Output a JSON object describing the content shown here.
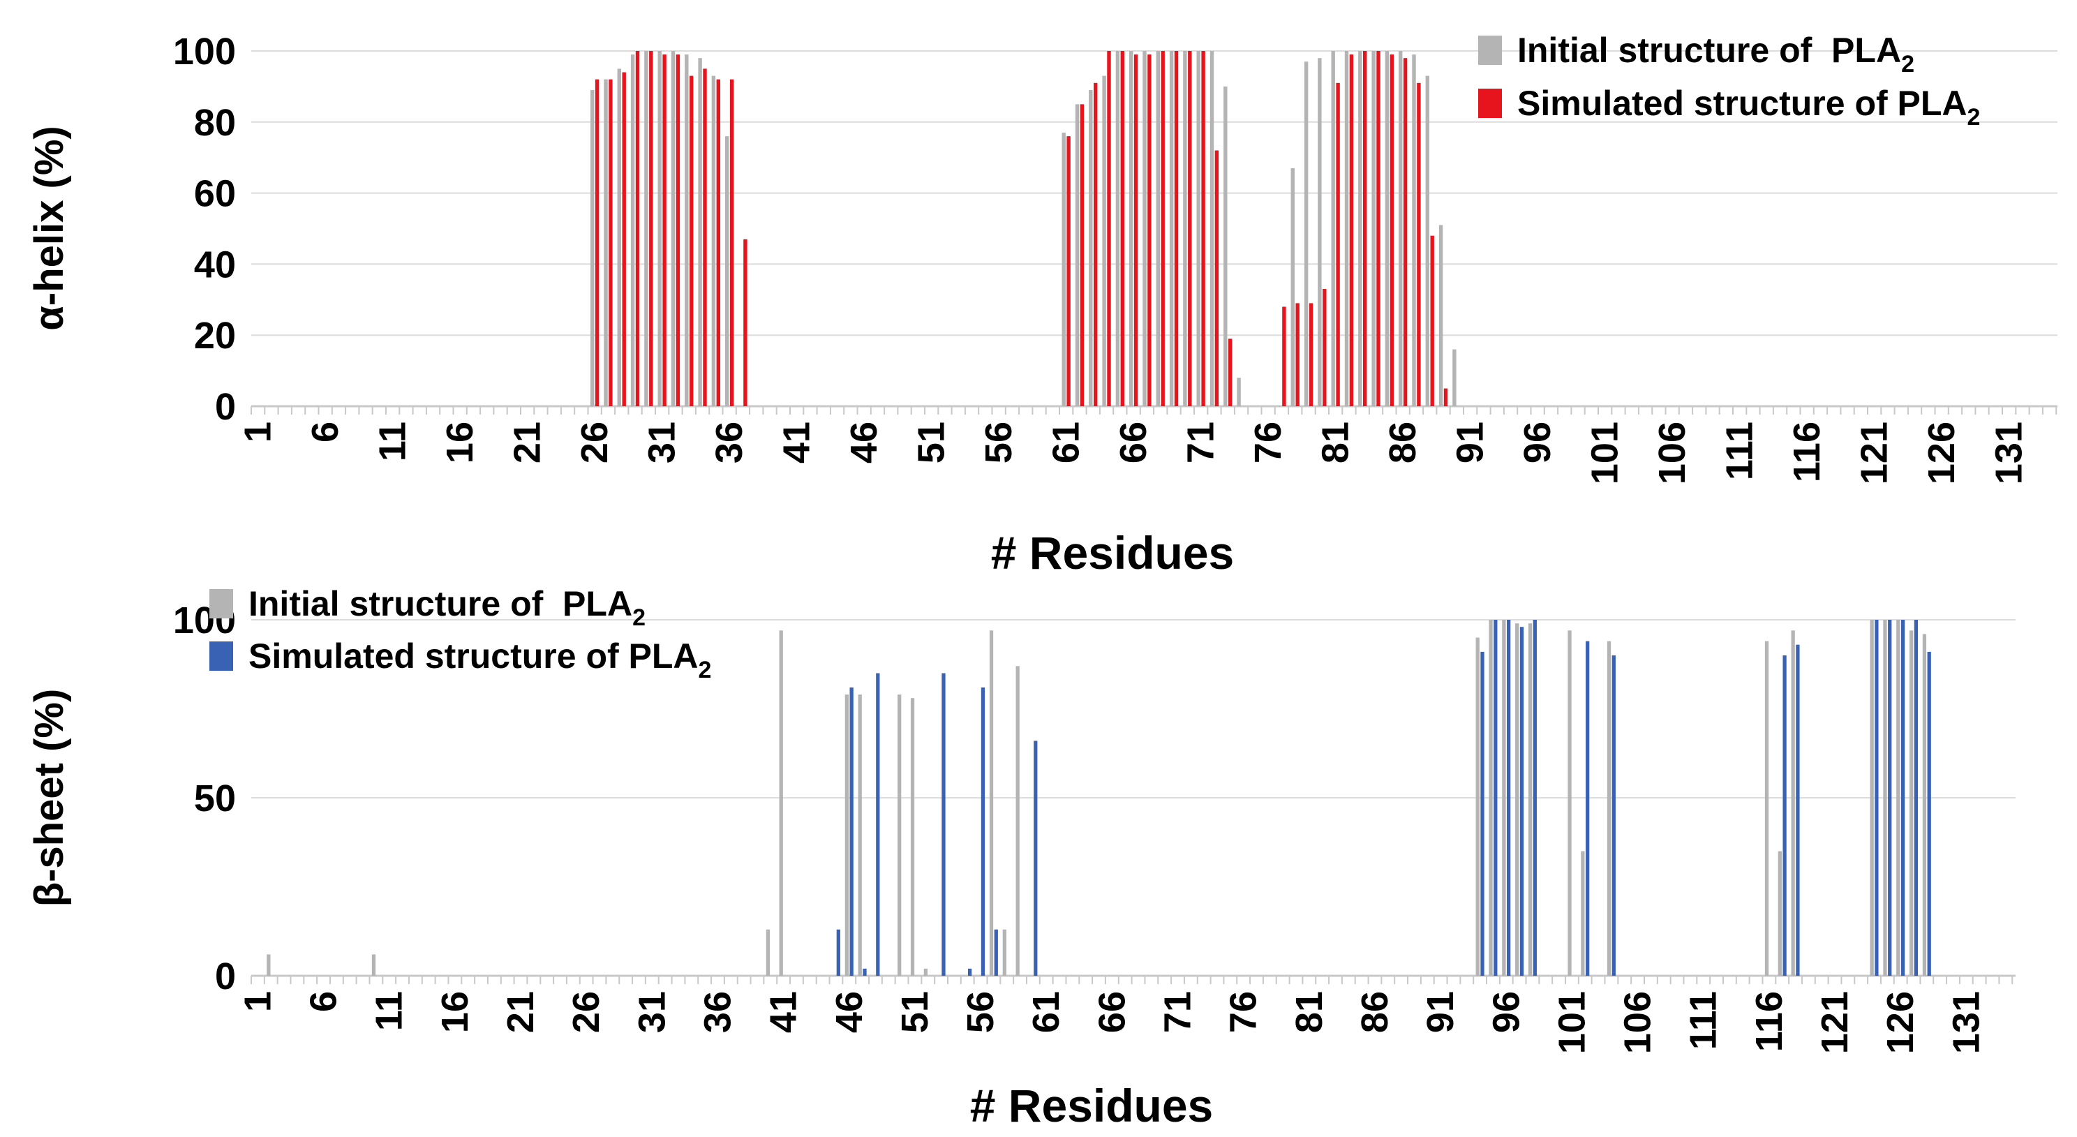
{
  "chart_data": [
    {
      "type": "bar",
      "panel": "alpha-helix",
      "title": "",
      "ylabel": "α-helix (%)",
      "xlabel": "# Residues",
      "ylim": [
        0,
        100
      ],
      "yticks": [
        0,
        20,
        40,
        60,
        80,
        100
      ],
      "x_range": [
        1,
        134
      ],
      "x_tick_labels": [
        "1",
        "6",
        "11",
        "16",
        "21",
        "26",
        "31",
        "36",
        "41",
        "46",
        "51",
        "56",
        "61",
        "66",
        "71",
        "76",
        "81",
        "86",
        "91",
        "96",
        "101",
        "106",
        "111",
        "116",
        "121",
        "126",
        "131"
      ],
      "legend_position": "top-right",
      "legend": [
        {
          "prefix": "Initial structure of  PLA",
          "sub": "2"
        },
        {
          "prefix": "Simulated structure of PLA",
          "sub": "2"
        }
      ],
      "series": [
        {
          "name": "Initial structure of PLA2",
          "color": "#b4b4b4",
          "points": [
            [
              26,
              89
            ],
            [
              27,
              92
            ],
            [
              28,
              95
            ],
            [
              29,
              99
            ],
            [
              30,
              100
            ],
            [
              31,
              100
            ],
            [
              32,
              100
            ],
            [
              33,
              99
            ],
            [
              34,
              98
            ],
            [
              35,
              93
            ],
            [
              36,
              76
            ],
            [
              61,
              77
            ],
            [
              62,
              85
            ],
            [
              63,
              89
            ],
            [
              64,
              93
            ],
            [
              65,
              100
            ],
            [
              66,
              100
            ],
            [
              67,
              100
            ],
            [
              68,
              100
            ],
            [
              69,
              100
            ],
            [
              70,
              100
            ],
            [
              71,
              100
            ],
            [
              72,
              100
            ],
            [
              73,
              90
            ],
            [
              74,
              8
            ],
            [
              78,
              67
            ],
            [
              79,
              97
            ],
            [
              80,
              98
            ],
            [
              81,
              100
            ],
            [
              82,
              100
            ],
            [
              83,
              100
            ],
            [
              84,
              100
            ],
            [
              85,
              100
            ],
            [
              86,
              100
            ],
            [
              87,
              99
            ],
            [
              88,
              93
            ],
            [
              89,
              51
            ],
            [
              90,
              16
            ]
          ]
        },
        {
          "name": "Simulated structure of PLA2",
          "color": "#e8141d",
          "points": [
            [
              26,
              92
            ],
            [
              27,
              92
            ],
            [
              28,
              94
            ],
            [
              29,
              100
            ],
            [
              30,
              100
            ],
            [
              31,
              99
            ],
            [
              32,
              99
            ],
            [
              33,
              93
            ],
            [
              34,
              95
            ],
            [
              35,
              92
            ],
            [
              36,
              92
            ],
            [
              37,
              47
            ],
            [
              61,
              76
            ],
            [
              62,
              85
            ],
            [
              63,
              91
            ],
            [
              64,
              100
            ],
            [
              65,
              100
            ],
            [
              66,
              99
            ],
            [
              67,
              99
            ],
            [
              68,
              100
            ],
            [
              69,
              100
            ],
            [
              70,
              100
            ],
            [
              71,
              100
            ],
            [
              72,
              72
            ],
            [
              73,
              19
            ],
            [
              77,
              28
            ],
            [
              78,
              29
            ],
            [
              79,
              29
            ],
            [
              80,
              33
            ],
            [
              81,
              91
            ],
            [
              82,
              99
            ],
            [
              83,
              100
            ],
            [
              84,
              100
            ],
            [
              85,
              99
            ],
            [
              86,
              98
            ],
            [
              87,
              91
            ],
            [
              88,
              48
            ],
            [
              89,
              5
            ]
          ]
        }
      ]
    },
    {
      "type": "bar",
      "panel": "beta-sheet",
      "title": "",
      "ylabel": "β-sheet (%)",
      "xlabel": "# Residues",
      "ylim": [
        0,
        100
      ],
      "yticks": [
        0,
        50,
        100
      ],
      "x_range": [
        1,
        134
      ],
      "x_tick_labels": [
        "1",
        "6",
        "11",
        "16",
        "21",
        "26",
        "31",
        "36",
        "41",
        "46",
        "51",
        "56",
        "61",
        "66",
        "71",
        "76",
        "81",
        "86",
        "91",
        "96",
        "101",
        "106",
        "111",
        "116",
        "121",
        "126",
        "131"
      ],
      "legend_position": "top-left",
      "legend": [
        {
          "prefix": "Initial structure of  PLA",
          "sub": "2"
        },
        {
          "prefix": "Simulated structure of PLA",
          "sub": "2"
        }
      ],
      "series": [
        {
          "name": "Initial structure of PLA2",
          "color": "#b4b4b4",
          "points": [
            [
              2,
              6
            ],
            [
              10,
              6
            ],
            [
              40,
              13
            ],
            [
              41,
              97
            ],
            [
              46,
              79
            ],
            [
              47,
              79
            ],
            [
              50,
              79
            ],
            [
              51,
              78
            ],
            [
              52,
              2
            ],
            [
              57,
              97
            ],
            [
              58,
              13
            ],
            [
              59,
              87
            ],
            [
              94,
              95
            ],
            [
              95,
              100
            ],
            [
              96,
              100
            ],
            [
              97,
              99
            ],
            [
              98,
              99
            ],
            [
              101,
              97
            ],
            [
              102,
              35
            ],
            [
              104,
              94
            ],
            [
              116,
              94
            ],
            [
              117,
              35
            ],
            [
              118,
              97
            ],
            [
              124,
              100
            ],
            [
              125,
              100
            ],
            [
              126,
              100
            ],
            [
              127,
              97
            ],
            [
              128,
              96
            ]
          ]
        },
        {
          "name": "Simulated structure of PLA2",
          "color": "#3a62b4",
          "points": [
            [
              45,
              13
            ],
            [
              46,
              81
            ],
            [
              47,
              2
            ],
            [
              48,
              85
            ],
            [
              53,
              85
            ],
            [
              55,
              2
            ],
            [
              56,
              81
            ],
            [
              57,
              13
            ],
            [
              60,
              66
            ],
            [
              94,
              91
            ],
            [
              95,
              100
            ],
            [
              96,
              100
            ],
            [
              97,
              98
            ],
            [
              98,
              100
            ],
            [
              102,
              94
            ],
            [
              104,
              90
            ],
            [
              117,
              90
            ],
            [
              118,
              93
            ],
            [
              124,
              100
            ],
            [
              125,
              100
            ],
            [
              126,
              100
            ],
            [
              127,
              100
            ],
            [
              128,
              91
            ]
          ]
        }
      ]
    }
  ]
}
